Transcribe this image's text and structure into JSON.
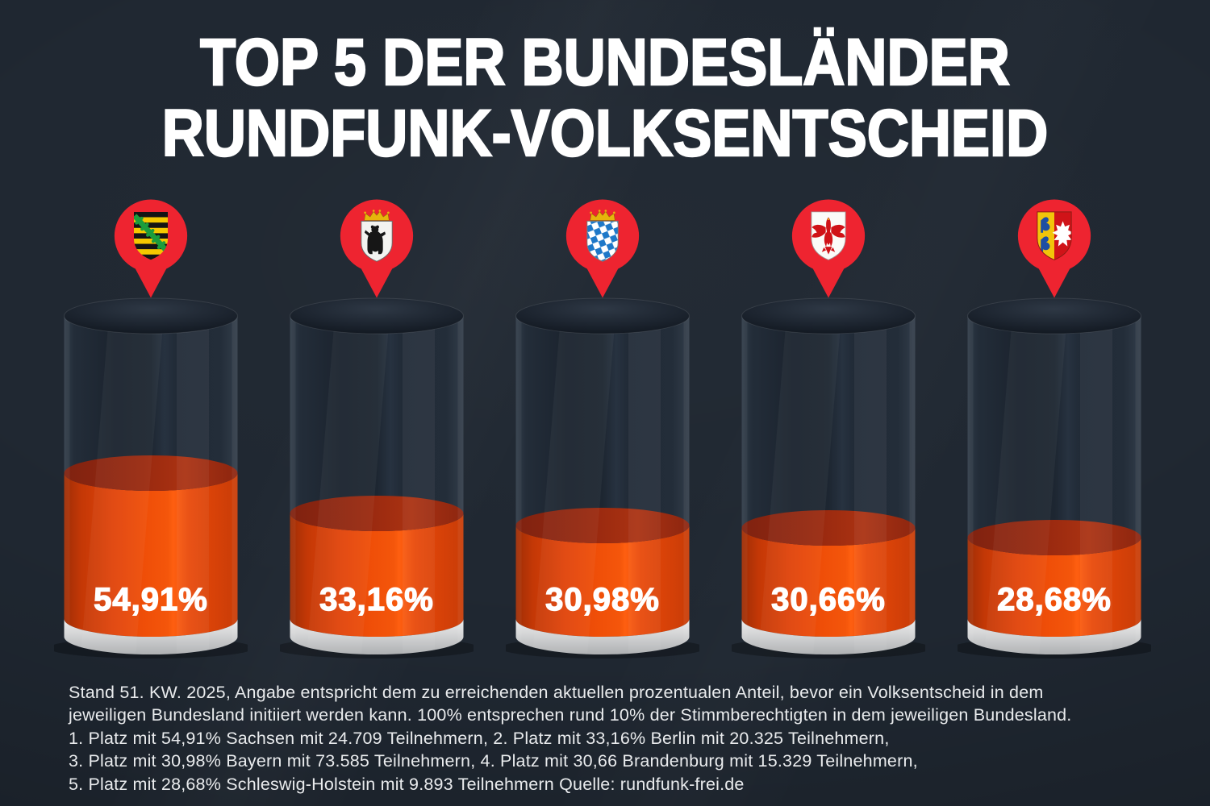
{
  "title": {
    "line1": "TOP 5  DER BUNDESLÄNDER",
    "line2": "RUNDFUNK-VOLKSENTSCHEID"
  },
  "chart_data": {
    "type": "bar",
    "title": "TOP 5 DER BUNDESLÄNDER RUNDFUNK-VOLKSENTSCHEID",
    "unit": "percent",
    "categories": [
      "Sachsen",
      "Berlin",
      "Bayern",
      "Brandenburg",
      "Schleswig-Holstein"
    ],
    "values": [
      54.91,
      33.16,
      30.98,
      30.66,
      28.68
    ],
    "value_labels": [
      "54,91%",
      "33,16%",
      "30,98%",
      "30,66%",
      "28,68%"
    ],
    "participants": [
      24709,
      20325,
      73585,
      15329,
      9893
    ],
    "crest_icons": [
      "saxony-coat-of-arms",
      "berlin-coat-of-arms",
      "bavaria-coat-of-arms",
      "brandenburg-coat-of-arms",
      "schleswig-holstein-coat-of-arms"
    ],
    "ylim": [
      0,
      100
    ],
    "legend_position": "none",
    "as_of": "Stand 51. KW. 2025",
    "source": "rundfunk-frei.de"
  },
  "footer": {
    "lines": [
      "Stand 51. KW. 2025, Angabe entspricht dem zu erreichenden aktuellen prozentualen Anteil, bevor ein Volksentscheid in dem",
      "jeweiligen Bundesland initiiert werden kann. 100% entsprechen rund 10% der Stimmberechtigten in dem jeweiligen Bundesland.",
      "1. Platz mit 54,91% Sachsen mit 24.709 Teilnehmern, 2. Platz mit 33,16% Berlin mit 20.325 Teilnehmern,",
      "3. Platz mit 30,98% Bayern mit 73.585 Teilnehmern, 4. Platz mit 30,66 Brandenburg mit 15.329 Teilnehmern,",
      "5. Platz mit 28,68% Schleswig-Holstein mit 9.893 Teilnehmern Quelle: rundfunk-frei.de"
    ]
  },
  "colors": {
    "background": "#1f2731",
    "liquid_orange": "#ee4a08",
    "liquid_surface": "#9e2b10",
    "pin_red": "#ee2430",
    "base_gray": "#cfcfcf",
    "title_text": "#ffffff",
    "footer_text": "#e9ebed"
  }
}
